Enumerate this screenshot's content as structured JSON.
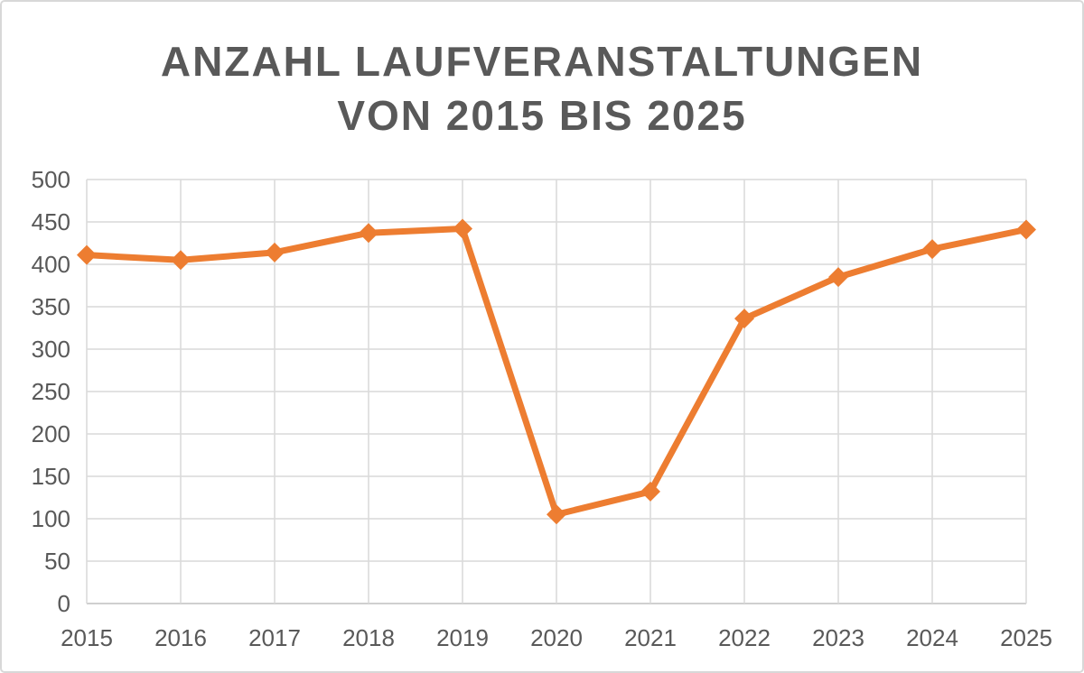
{
  "title": {
    "line1": "ANZAHL LAUFVERANSTALTUNGEN",
    "line2": "VON 2015 BIS 2025"
  },
  "chart_data": {
    "type": "line",
    "title": "Anzahl Laufveranstaltungen von 2015 bis 2025",
    "categories": [
      "2015",
      "2016",
      "2017",
      "2018",
      "2019",
      "2020",
      "2021",
      "2022",
      "2023",
      "2024",
      "2025"
    ],
    "series": [
      {
        "name": "Anzahl Laufveranstaltungen",
        "values": [
          411,
          405,
          414,
          437,
          442,
          105,
          132,
          336,
          385,
          418,
          441
        ]
      }
    ],
    "xlabel": "",
    "ylabel": "",
    "ylim": [
      0,
      500
    ],
    "ytick_step": 50,
    "grid": true,
    "legend": false,
    "marker": "diamond",
    "line_width": 7,
    "marker_radius": 11,
    "colors": {
      "line": "#ED7D31",
      "gridline": "#D9D9D9",
      "axis_line": "#BFBFBF",
      "text": "#595959",
      "title_text": "#595959",
      "background": "#FFFFFF",
      "border": "#D8D8D8"
    }
  }
}
